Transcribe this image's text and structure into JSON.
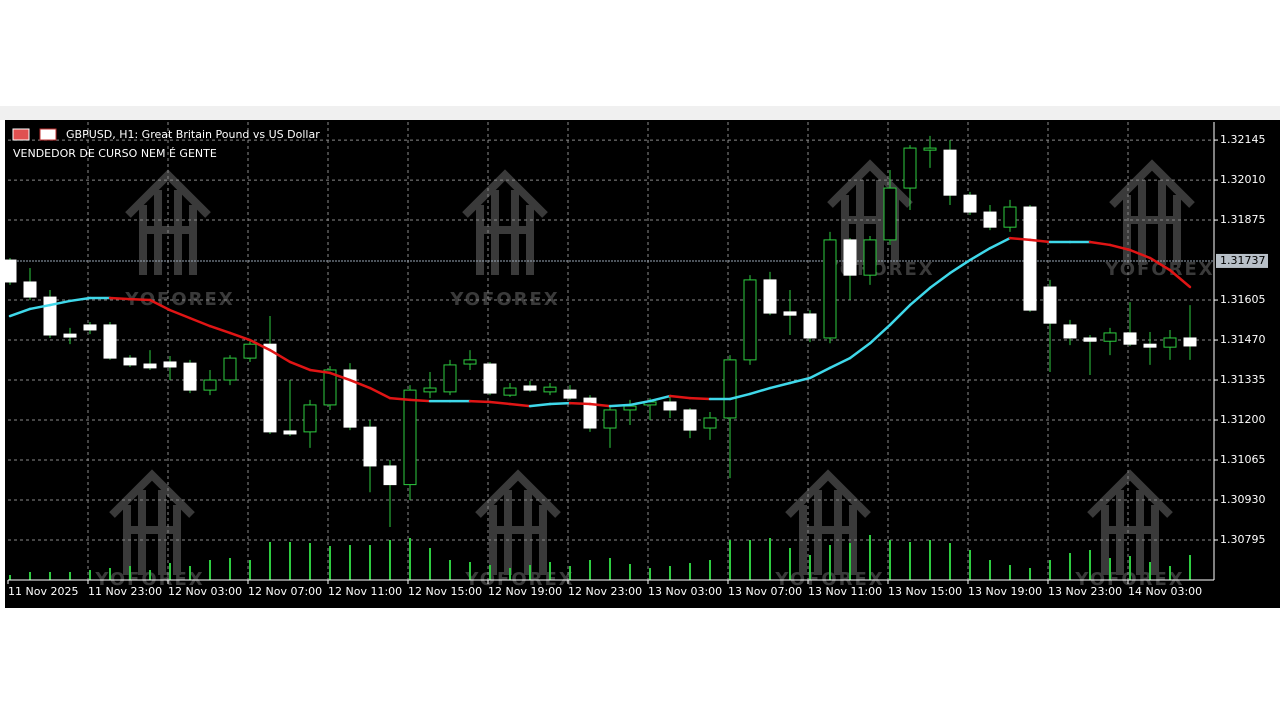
{
  "chart_data": {
    "type": "candlestick",
    "title": "GBPUSD, H1:  Great Britain Pound vs US Dollar",
    "subtitle": "VENDEDOR DE CURSO NEM É GENTE",
    "watermark": "YOFOREX",
    "open": [
      1.3174,
      1.31666,
      1.31615,
      1.3149,
      1.31521,
      1.31521,
      1.31409,
      1.31389,
      1.31396,
      1.31392,
      1.31301,
      1.31335,
      1.31409,
      1.31456,
      1.31163,
      1.3116,
      1.31251,
      1.31369,
      1.31176,
      1.31045,
      1.30982,
      1.31295,
      1.31295,
      1.31389,
      1.31389,
      1.31284,
      1.31315,
      1.31295,
      1.31301,
      1.31274,
      1.31173,
      1.31234,
      1.31251,
      1.31261,
      1.31234,
      1.31173,
      1.31207,
      1.31403,
      1.31673,
      1.31565,
      1.31558,
      1.31477,
      1.31808,
      1.31689,
      1.31808,
      1.31983,
      1.32111,
      1.32111,
      1.31959,
      1.31902,
      1.31851,
      1.31919,
      1.31649,
      1.31521,
      1.31477,
      1.31466,
      1.31494,
      1.31456,
      1.31446,
      1.31477
    ],
    "high": [
      1.31747,
      1.31713,
      1.31639,
      1.31511,
      1.31531,
      1.31531,
      1.31419,
      1.31436,
      1.31416,
      1.31403,
      1.31369,
      1.31419,
      1.3147,
      1.31551,
      1.31335,
      1.31268,
      1.31382,
      1.31392,
      1.312,
      1.31065,
      1.31318,
      1.31362,
      1.31403,
      1.31436,
      1.31396,
      1.31325,
      1.31332,
      1.31325,
      1.31318,
      1.31284,
      1.31251,
      1.31268,
      1.31274,
      1.31281,
      1.3124,
      1.31227,
      1.31419,
      1.31689,
      1.317,
      1.31639,
      1.31571,
      1.31835,
      1.31814,
      1.31821,
      1.32044,
      1.32128,
      1.32159,
      1.32145,
      1.3197,
      1.31926,
      1.31943,
      1.31926,
      1.31673,
      1.31538,
      1.31487,
      1.31511,
      1.31598,
      1.31497,
      1.31504,
      1.31588
    ],
    "low": [
      1.31656,
      1.31605,
      1.31477,
      1.31456,
      1.3149,
      1.31403,
      1.31379,
      1.31369,
      1.31335,
      1.31291,
      1.31284,
      1.31318,
      1.31396,
      1.31153,
      1.31146,
      1.31106,
      1.31234,
      1.31166,
      1.30956,
      1.30839,
      1.3093,
      1.31274,
      1.31284,
      1.31369,
      1.31284,
      1.31278,
      1.31295,
      1.31284,
      1.31268,
      1.3116,
      1.31106,
      1.31183,
      1.312,
      1.31207,
      1.31139,
      1.31133,
      1.31004,
      1.31386,
      1.31554,
      1.31487,
      1.31463,
      1.31459,
      1.31605,
      1.31656,
      1.31791,
      1.31909,
      1.32051,
      1.31926,
      1.31892,
      1.31841,
      1.31835,
      1.31565,
      1.31362,
      1.31453,
      1.31352,
      1.31419,
      1.3145,
      1.31386,
      1.31403,
      1.31403
    ],
    "close": [
      1.31666,
      1.31615,
      1.31487,
      1.3148,
      1.31504,
      1.31409,
      1.31386,
      1.31376,
      1.31379,
      1.31301,
      1.31335,
      1.31409,
      1.31456,
      1.3116,
      1.31153,
      1.31251,
      1.31369,
      1.31176,
      1.31045,
      1.30982,
      1.31301,
      1.31308,
      1.31386,
      1.31403,
      1.31291,
      1.31308,
      1.31301,
      1.31311,
      1.31274,
      1.31173,
      1.31234,
      1.31247,
      1.31261,
      1.31234,
      1.31166,
      1.31207,
      1.31403,
      1.31673,
      1.31561,
      1.31554,
      1.31477,
      1.31808,
      1.31689,
      1.31808,
      1.31983,
      1.32118,
      1.32118,
      1.31959,
      1.31902,
      1.31851,
      1.31919,
      1.31571,
      1.31527,
      1.31477,
      1.31466,
      1.31494,
      1.31456,
      1.31446,
      1.31477,
      1.3145
    ],
    "volumes": [
      5,
      8,
      8,
      8,
      10,
      12,
      14,
      10,
      17,
      14,
      20,
      22,
      20,
      38,
      38,
      37,
      34,
      35,
      35,
      40,
      42,
      32,
      20,
      18,
      15,
      12,
      15,
      18,
      14,
      20,
      22,
      16,
      12,
      14,
      17,
      20,
      40,
      40,
      42,
      32,
      25,
      35,
      37,
      45,
      40,
      38,
      40,
      37,
      30,
      20,
      15,
      12,
      20,
      27,
      30,
      22,
      24,
      18,
      14,
      25
    ],
    "ma": [
      1.31551,
      1.31575,
      1.31588,
      1.31602,
      1.31612,
      1.31612,
      1.31608,
      1.31605,
      1.31571,
      1.31544,
      1.31517,
      1.31494,
      1.3147,
      1.31436,
      1.31396,
      1.31369,
      1.31359,
      1.31335,
      1.31308,
      1.31274,
      1.31268,
      1.31264,
      1.31264,
      1.31264,
      1.31261,
      1.31254,
      1.31247,
      1.31254,
      1.31257,
      1.31254,
      1.31247,
      1.31251,
      1.31264,
      1.31281,
      1.31274,
      1.31271,
      1.31271,
      1.31288,
      1.31308,
      1.31325,
      1.31342,
      1.31376,
      1.31409,
      1.31459,
      1.31521,
      1.31588,
      1.31646,
      1.31696,
      1.3174,
      1.3178,
      1.31814,
      1.31808,
      1.31801,
      1.31801,
      1.31801,
      1.31791,
      1.31774,
      1.31747,
      1.31706,
      1.31649
    ],
    "x_labels": [
      "11 Nov 2025",
      "11 Nov 23:00",
      "12 Nov 03:00",
      "12 Nov 07:00",
      "12 Nov 11:00",
      "12 Nov 15:00",
      "12 Nov 19:00",
      "12 Nov 23:00",
      "13 Nov 03:00",
      "13 Nov 07:00",
      "13 Nov 11:00",
      "13 Nov 15:00",
      "13 Nov 19:00",
      "13 Nov 23:00",
      "14 Nov 03:00"
    ],
    "ylim": [
      1.3066,
      1.32206
    ],
    "yticks": [
      1.32145,
      {
        "value": 1.3201,
        "label": "1.32010"
      },
      1.31875,
      1.31605,
      {
        "value": 1.3147,
        "label": "1.31470"
      },
      1.31335,
      {
        "value": 1.312,
        "label": "1.31200"
      },
      1.31065,
      {
        "value": 1.3093,
        "label": "1.30930"
      },
      1.30795
    ],
    "price_line": 1.31737,
    "grid": true,
    "bull_color": "#000000",
    "bear_color": "#ffffff",
    "wick_color": "#2ecc40",
    "ma_up_color": "#3fd8ea",
    "ma_down_color": "#e01515"
  }
}
